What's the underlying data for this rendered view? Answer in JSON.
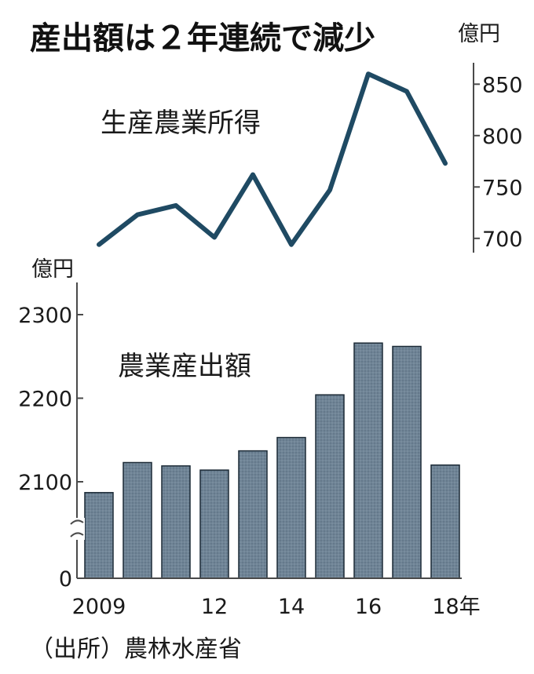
{
  "title": "産出額は２年連続で減少",
  "source": "（出所）農林水産省",
  "colors": {
    "line": "#1f4a63",
    "bar_fill": "#6f8496",
    "bar_edge": "#1c2a36"
  },
  "chart_data": [
    {
      "type": "line",
      "series_label": "生産農業所得",
      "unit": "億円",
      "x": [
        2009,
        2010,
        2011,
        2012,
        2013,
        2014,
        2015,
        2016,
        2017,
        2018
      ],
      "values": [
        694,
        723,
        732,
        701,
        762,
        694,
        747,
        860,
        843,
        773
      ],
      "ylim": [
        680,
        880
      ],
      "yticks": [
        "700",
        "750",
        "800",
        "850"
      ],
      "axis_position": "right"
    },
    {
      "type": "bar",
      "series_label": "農業産出額",
      "unit": "億円",
      "x": [
        2009,
        2010,
        2011,
        2012,
        2013,
        2014,
        2015,
        2016,
        2017,
        2018
      ],
      "values": [
        2087,
        2123,
        2119,
        2114,
        2137,
        2153,
        2204,
        2266,
        2262,
        2120
      ],
      "ylim": [
        0,
        2330
      ],
      "axis_break": [
        0,
        2060
      ],
      "yticks": [
        "0",
        "2100",
        "2200",
        "2300"
      ],
      "xtick_labels": [
        "2009",
        "12",
        "14",
        "16",
        "18年"
      ],
      "axis_position": "left"
    }
  ]
}
